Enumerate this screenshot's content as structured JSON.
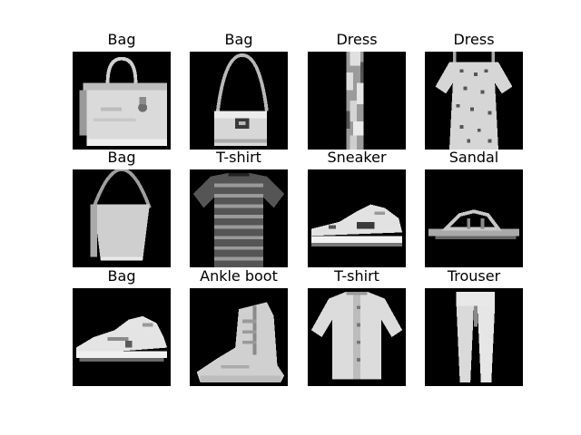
{
  "figure": {
    "panels": [
      {
        "label": "Bag",
        "icon": "handbag-icon"
      },
      {
        "label": "Bag",
        "icon": "shoulder-bag-icon"
      },
      {
        "label": "Dress",
        "icon": "slim-dress-icon"
      },
      {
        "label": "Dress",
        "icon": "patterned-dress-icon"
      },
      {
        "label": "Bag",
        "icon": "hobo-bag-icon"
      },
      {
        "label": "T-shirt",
        "icon": "striped-tshirt-icon"
      },
      {
        "label": "Sneaker",
        "icon": "sneaker-icon"
      },
      {
        "label": "Sandal",
        "icon": "sandal-icon"
      },
      {
        "label": "Bag",
        "icon": "sneaker-icon"
      },
      {
        "label": "Ankle boot",
        "icon": "ankle-boot-icon"
      },
      {
        "label": "T-shirt",
        "icon": "shirt-icon"
      },
      {
        "label": "Trouser",
        "icon": "trouser-icon"
      }
    ],
    "colors": {
      "image_background": "#000000",
      "garment_light": "#e6e6e6",
      "garment_mid": "#9a9a9a",
      "garment_dark": "#4a4a4a"
    }
  }
}
